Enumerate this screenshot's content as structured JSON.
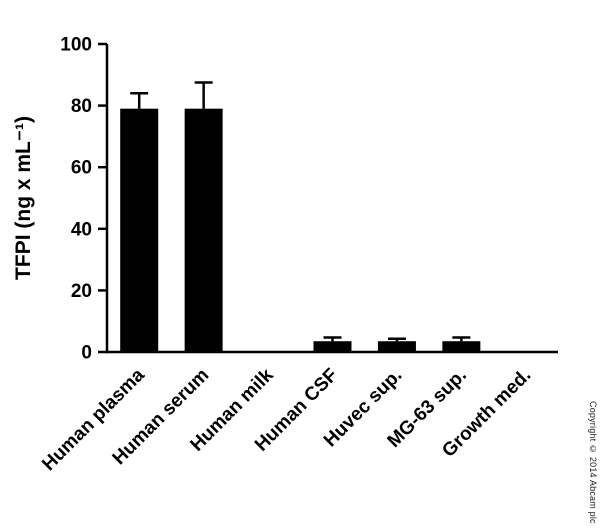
{
  "copyright": "Copyright © 2014 Abcam plc",
  "chart_data": {
    "type": "bar",
    "title": "",
    "xlabel": "",
    "ylabel": "TFPI (ng x mL⁻¹)",
    "ylim": [
      0,
      100
    ],
    "yticks": [
      0,
      20,
      40,
      60,
      80,
      100
    ],
    "categories": [
      "Human plasma",
      "Human serum",
      "Human milk",
      "Human CSF",
      "Huvec sup.",
      "MG-63 sup.",
      "Growth med."
    ],
    "values": [
      79,
      79,
      0,
      3.5,
      3.5,
      3.5,
      0
    ],
    "errors": [
      5,
      8.5,
      0,
      1.2,
      0.8,
      1.2,
      0
    ],
    "bar_color": "#000000",
    "axis_color": "#000000",
    "grid": false,
    "legend": false
  }
}
